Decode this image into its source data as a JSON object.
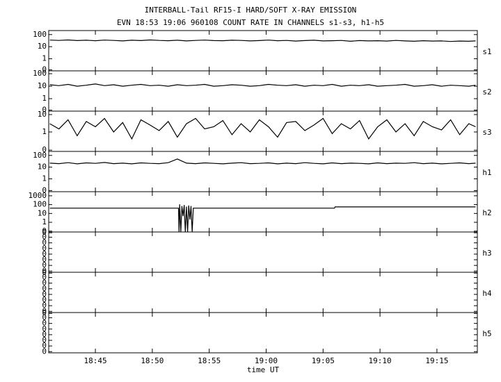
{
  "chart_data": {
    "type": "line",
    "title": "INTERBALL-Tail RF15-I HARD/SOFT X-RAY EMISSION",
    "subtitle": "EVN 18:53 19:06 960108  COUNT RATE IN CHANNELS s1-s3, h1-h5",
    "x_label": "time UT",
    "xlim": [
      1120.9,
      1158.55
    ],
    "xticks": [
      {
        "value": 1125,
        "label": "18:45"
      },
      {
        "value": 1130,
        "label": "18:50"
      },
      {
        "value": 1135,
        "label": "18:55"
      },
      {
        "value": 1140,
        "label": "19:00"
      },
      {
        "value": 1145,
        "label": "19:05"
      },
      {
        "value": 1150,
        "label": "19:10"
      },
      {
        "value": 1155,
        "label": "19:15"
      }
    ],
    "x": [
      1121.0,
      1121.8,
      1122.6,
      1123.4,
      1124.2,
      1125.0,
      1125.8,
      1126.6,
      1127.4,
      1128.2,
      1129.0,
      1129.8,
      1130.6,
      1131.4,
      1132.2,
      1133.0,
      1133.8,
      1134.6,
      1135.4,
      1136.2,
      1137.0,
      1137.8,
      1138.6,
      1139.4,
      1140.2,
      1141.0,
      1141.8,
      1142.6,
      1143.4,
      1144.2,
      1145.0,
      1145.8,
      1146.6,
      1147.4,
      1148.2,
      1149.0,
      1149.8,
      1150.6,
      1151.4,
      1152.2,
      1153.0,
      1153.8,
      1154.6,
      1155.4,
      1156.2,
      1157.0,
      1157.8,
      1158.4
    ],
    "panels": [
      {
        "name": "s1",
        "log": true,
        "ylim": [
          0.1,
          215
        ],
        "yticks": [
          {
            "value": 0.12,
            "label": "0"
          },
          1,
          10,
          100
        ],
        "series": [
          {
            "color": "#000000",
            "values": [
              35,
              33,
              36,
              32,
              34,
              31,
              35,
              33,
              30,
              34,
              32,
              36,
              33,
              31,
              34,
              30,
              33,
              35,
              32,
              31,
              34,
              33,
              30,
              32,
              35,
              31,
              33,
              29,
              32,
              34,
              30,
              31,
              33,
              28,
              32,
              30,
              31,
              29,
              33,
              30,
              28,
              31,
              29,
              30,
              27,
              29,
              28,
              30
            ]
          }
        ]
      },
      {
        "name": "s2",
        "log": true,
        "ylim": [
          0.1,
          170
        ],
        "yticks": [
          {
            "value": 0.12,
            "label": "0"
          },
          1,
          10,
          100
        ],
        "series": [
          {
            "color": "#000000",
            "values": [
              13,
              11,
              14,
              10,
              12,
              15,
              11,
              13,
              10,
              12,
              14,
              11,
              12,
              10,
              13,
              11,
              12,
              14,
              10,
              11,
              13,
              12,
              10,
              11,
              14,
              12,
              11,
              13,
              10,
              12,
              11,
              14,
              10,
              12,
              11,
              13,
              10,
              11,
              12,
              14,
              10,
              11,
              13,
              10,
              12,
              11,
              10,
              12
            ]
          }
        ]
      },
      {
        "name": "s3",
        "log": true,
        "ylim": [
          0.076,
          15.8
        ],
        "yticks": [
          {
            "value": 0.09,
            "label": "0"
          },
          1,
          10
        ],
        "series": [
          {
            "color": "#000000",
            "values": [
              3,
              1.5,
              5,
              0.6,
              4,
              2,
              6,
              1,
              3.5,
              0.4,
              5,
              2.5,
              1.2,
              4,
              0.5,
              3,
              6,
              1.5,
              2,
              4.5,
              0.7,
              3,
              1,
              5,
              2,
              0.5,
              3.5,
              4,
              1.2,
              2.5,
              6,
              0.8,
              3,
              1.5,
              4.5,
              0.4,
              2,
              5,
              1,
              3,
              0.6,
              4,
              2,
              1.3,
              5,
              0.7,
              3,
              2
            ]
          }
        ]
      },
      {
        "name": "h1",
        "log": true,
        "ylim": [
          0.08,
          220
        ],
        "yticks": [
          {
            "value": 0.1,
            "label": "0"
          },
          1,
          10,
          100
        ],
        "series": [
          {
            "color": "#000000",
            "values": [
              22,
              20,
              24,
              19,
              23,
              21,
              25,
              20,
              22,
              19,
              23,
              21,
              20,
              24,
              50,
              22,
              20,
              23,
              21,
              19,
              22,
              24,
              20,
              21,
              23,
              19,
              22,
              20,
              24,
              21,
              19,
              23,
              20,
              22,
              21,
              19,
              23,
              20,
              22,
              21,
              24,
              20,
              22,
              19,
              21,
              23,
              20,
              22
            ]
          }
        ]
      },
      {
        "name": "h2",
        "log": true,
        "ylim": [
          0.08,
          2900
        ],
        "yticks": [
          {
            "value": 0.1,
            "label": "0"
          },
          1,
          10,
          100,
          1000
        ],
        "series": [
          {
            "color": "#000000",
            "x": [
              1121.0,
              1132.3,
              1132.35,
              1132.4,
              1132.5,
              1132.6,
              1132.7,
              1132.8,
              1132.9,
              1133.0,
              1133.1,
              1133.2,
              1133.3,
              1133.4,
              1133.5,
              1133.6,
              1146.0,
              1146.05,
              1158.4
            ],
            "values": [
              40,
              40,
              0,
              110,
              0,
              70,
              5,
              90,
              0,
              60,
              0,
              80,
              2,
              70,
              0,
              40,
              40,
              55,
              55
            ]
          }
        ]
      },
      {
        "name": "h3",
        "log": false,
        "ylim": [
          0,
          1
        ],
        "yticks": [
          {
            "value": 0.03,
            "label": "0"
          },
          {
            "value": 0.17,
            "label": "0"
          },
          {
            "value": 0.31,
            "label": "0"
          },
          {
            "value": 0.45,
            "label": "0"
          },
          {
            "value": 0.59,
            "label": "0"
          },
          {
            "value": 0.73,
            "label": "0"
          },
          {
            "value": 0.87,
            "label": "0"
          },
          {
            "value": 0.98,
            "label": "0"
          }
        ],
        "series": []
      },
      {
        "name": "h4",
        "log": false,
        "ylim": [
          0,
          1
        ],
        "yticks": [
          {
            "value": 0.03,
            "label": "0"
          },
          {
            "value": 0.17,
            "label": "0"
          },
          {
            "value": 0.31,
            "label": "0"
          },
          {
            "value": 0.45,
            "label": "0"
          },
          {
            "value": 0.59,
            "label": "0"
          },
          {
            "value": 0.73,
            "label": "0"
          },
          {
            "value": 0.87,
            "label": "0"
          },
          {
            "value": 0.98,
            "label": "0"
          }
        ],
        "series": []
      },
      {
        "name": "h5",
        "log": false,
        "ylim": [
          0,
          1
        ],
        "yticks": [
          {
            "value": 0.03,
            "label": "0"
          },
          {
            "value": 0.17,
            "label": "0"
          },
          {
            "value": 0.31,
            "label": "0"
          },
          {
            "value": 0.45,
            "label": "0"
          },
          {
            "value": 0.59,
            "label": "0"
          },
          {
            "value": 0.73,
            "label": "0"
          },
          {
            "value": 0.87,
            "label": "0"
          },
          {
            "value": 0.98,
            "label": "0"
          }
        ],
        "series": []
      }
    ]
  }
}
